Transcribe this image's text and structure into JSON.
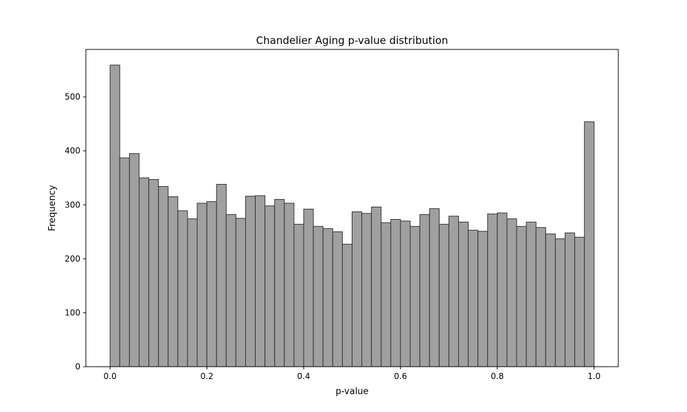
{
  "chart_data": {
    "type": "bar",
    "title": "Chandelier Aging p-value distribution",
    "xlabel": "p-value",
    "ylabel": "Frequency",
    "xlim": [
      -0.05,
      1.05
    ],
    "ylim": [
      0,
      588
    ],
    "xticks": [
      0.0,
      0.2,
      0.4,
      0.6,
      0.8,
      1.0
    ],
    "xtick_labels": [
      "0.0",
      "0.2",
      "0.4",
      "0.6",
      "0.8",
      "1.0"
    ],
    "yticks": [
      0,
      100,
      200,
      300,
      400,
      500
    ],
    "ytick_labels": [
      "0",
      "100",
      "200",
      "300",
      "400",
      "500"
    ],
    "grid": false,
    "bar_color": "#a0a0a0",
    "edge_color": "#333333",
    "bin_start": 0.0,
    "bin_width": 0.02,
    "values": [
      559,
      387,
      395,
      350,
      347,
      334,
      315,
      289,
      274,
      303,
      306,
      338,
      282,
      275,
      316,
      317,
      298,
      310,
      303,
      264,
      292,
      260,
      256,
      250,
      227,
      287,
      284,
      296,
      267,
      273,
      270,
      260,
      282,
      293,
      264,
      279,
      268,
      253,
      251,
      283,
      285,
      274,
      260,
      268,
      258,
      246,
      237,
      248,
      240,
      454
    ]
  }
}
